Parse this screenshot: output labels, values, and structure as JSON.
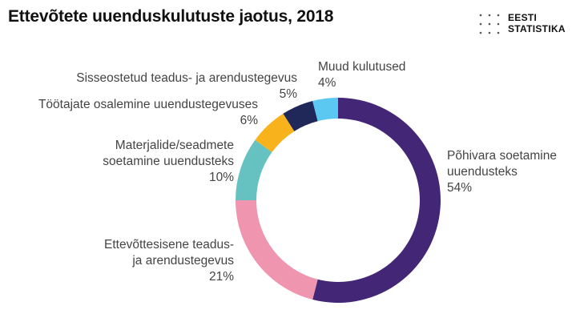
{
  "title": "Ettevõtete uuenduskulutuste jaotus, 2018",
  "logo": {
    "line1": "EESTI",
    "line2": "STATISTIKA"
  },
  "chart_data": {
    "type": "pie",
    "variant": "donut",
    "title": "Ettevõtete uuenduskulutuste jaotus, 2018",
    "slices": [
      {
        "label": [
          "Põhivara soetamine",
          "uuendusteks"
        ],
        "value": 54,
        "value_label": "54%",
        "color": "#432675"
      },
      {
        "label": [
          "Ettevõttesisene teadus-",
          "ja arendustegevus"
        ],
        "value": 21,
        "value_label": "21%",
        "color": "#f095b0"
      },
      {
        "label": [
          "Materjalide/seadmete",
          "soetamine uuendusteks"
        ],
        "value": 10,
        "value_label": "10%",
        "color": "#66c2c0"
      },
      {
        "label": [
          "Töötajate osalemine uuendustegevuses"
        ],
        "value": 6,
        "value_label": "6%",
        "color": "#f7b21c"
      },
      {
        "label": [
          "Sisseostetud teadus- ja arendustegevus"
        ],
        "value": 5,
        "value_label": "5%",
        "color": "#20285a"
      },
      {
        "label": [
          "Muud kulutused"
        ],
        "value": 4,
        "value_label": "4%",
        "color": "#5bc8f2"
      }
    ],
    "start": "top",
    "direction": "clockwise"
  }
}
